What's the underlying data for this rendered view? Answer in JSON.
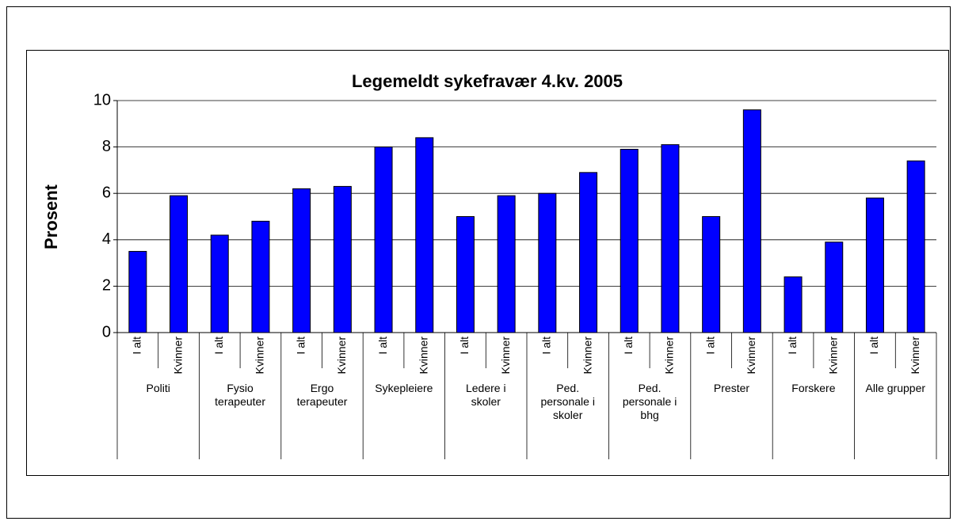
{
  "chart_data": {
    "type": "bar",
    "title": "Legemeldt sykefravær 4.kv. 2005",
    "y_label": "Prosent",
    "categories": [
      "I alt",
      "Kvinner",
      "I alt",
      "Kvinner",
      "I alt",
      "Kvinner",
      "I alt",
      "Kvinner",
      "I alt",
      "Kvinner",
      "I alt",
      "Kvinner",
      "I alt",
      "Kvinner",
      "I alt",
      "Kvinner",
      "I alt",
      "Kvinner",
      "I alt",
      "Kvinner"
    ],
    "groups": [
      "Politi",
      "Fysio\nterapeuter",
      "Ergo\nterapeuter",
      "Sykepleiere",
      "Ledere i\nskoler",
      "Ped.\npersonale i\nskoler",
      "Ped.\npersonale i\nbhg",
      "Prester",
      "Forskere",
      "Alle grupper"
    ],
    "values": [
      3.5,
      5.9,
      4.2,
      4.8,
      6.2,
      6.3,
      8.0,
      8.4,
      5.0,
      5.9,
      6.0,
      6.9,
      7.9,
      8.1,
      5.0,
      9.6,
      2.4,
      3.9,
      5.8,
      7.4
    ],
    "color": "#0000ff",
    "ylim": [
      0,
      10
    ],
    "yticks": [
      0,
      2,
      4,
      6,
      8,
      10
    ],
    "grid": true
  }
}
